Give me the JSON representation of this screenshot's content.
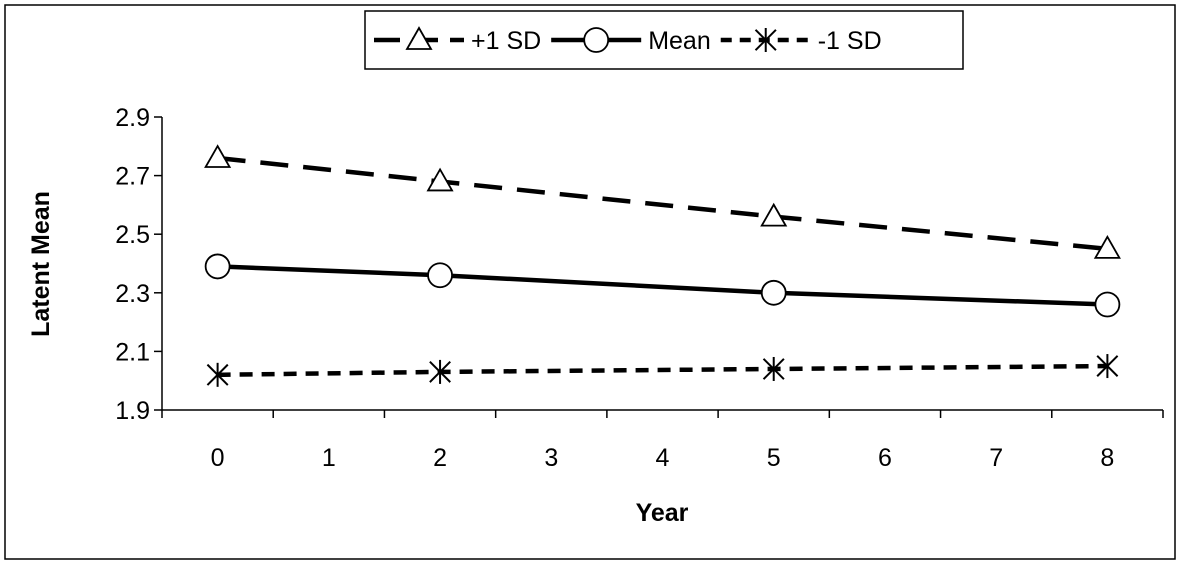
{
  "chart_data": {
    "type": "line",
    "title": "",
    "xlabel": "Year",
    "ylabel": "Latent Mean",
    "categories": [
      "0",
      "1",
      "2",
      "3",
      "4",
      "5",
      "6",
      "7",
      "8"
    ],
    "x": [
      0,
      1,
      2,
      3,
      4,
      5,
      6,
      7,
      8
    ],
    "yticks": [
      "1.9",
      "2.1",
      "2.3",
      "2.5",
      "2.7",
      "2.9"
    ],
    "ylim": [
      1.9,
      2.9
    ],
    "grid": false,
    "legend_position": "top",
    "series": [
      {
        "name": "+1 SD",
        "marker": "triangle",
        "line_style": "long-dash",
        "color": "#000000",
        "points": [
          {
            "x": 0,
            "y": 2.76
          },
          {
            "x": 2,
            "y": 2.68
          },
          {
            "x": 5,
            "y": 2.56
          },
          {
            "x": 8,
            "y": 2.45
          }
        ]
      },
      {
        "name": "Mean",
        "marker": "circle",
        "line_style": "solid",
        "color": "#000000",
        "points": [
          {
            "x": 0,
            "y": 2.39
          },
          {
            "x": 2,
            "y": 2.36
          },
          {
            "x": 5,
            "y": 2.3
          },
          {
            "x": 8,
            "y": 2.26
          }
        ]
      },
      {
        "name": "-1 SD",
        "marker": "asterisk",
        "line_style": "short-dash",
        "color": "#000000",
        "points": [
          {
            "x": 0,
            "y": 2.02
          },
          {
            "x": 2,
            "y": 2.03
          },
          {
            "x": 5,
            "y": 2.04
          },
          {
            "x": 8,
            "y": 2.05
          }
        ]
      }
    ]
  }
}
